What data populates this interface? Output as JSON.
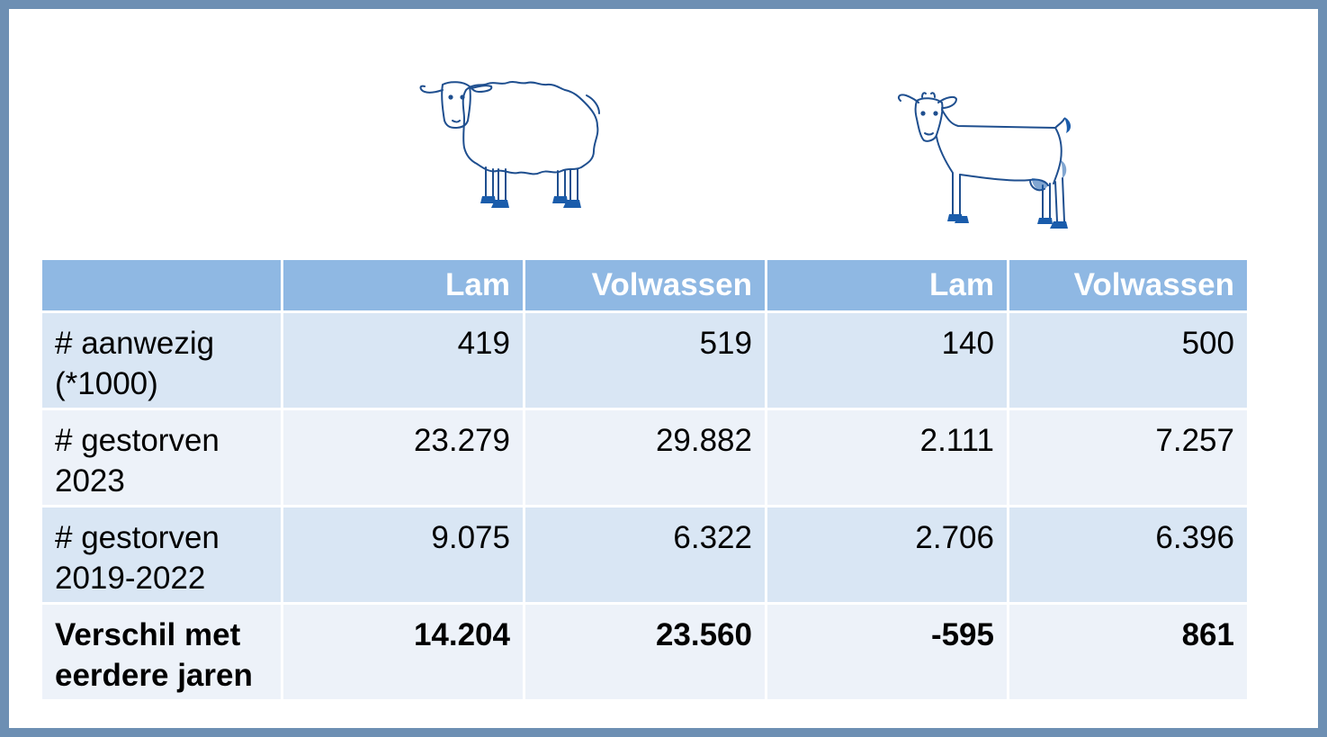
{
  "icons": {
    "sheep": "sheep-icon",
    "goat": "goat-icon"
  },
  "colors": {
    "header_bg": "#8fb8e3",
    "row_dark": "#d9e6f4",
    "row_light": "#edf2f9",
    "icon_stroke": "#1f4f8f",
    "hoof": "#1a5cab"
  },
  "table": {
    "headers": [
      "",
      "Lam",
      "Volwassen",
      "Lam",
      "Volwassen"
    ],
    "rows": [
      {
        "label_line1": "# aanwezig",
        "label_line2": "(*1000)",
        "values": [
          "419",
          "519",
          "140",
          "500"
        ]
      },
      {
        "label_line1": "# gestorven",
        "label_line2": "2023",
        "values": [
          "23.279",
          "29.882",
          "2.111",
          "7.257"
        ]
      },
      {
        "label_line1": "# gestorven",
        "label_line2": "2019-2022",
        "values": [
          "9.075",
          "6.322",
          "2.706",
          "6.396"
        ]
      },
      {
        "label_line1": "Verschil met",
        "label_line2": "eerdere jaren",
        "values": [
          "14.204",
          "23.560",
          "-595",
          "861"
        ]
      }
    ]
  }
}
